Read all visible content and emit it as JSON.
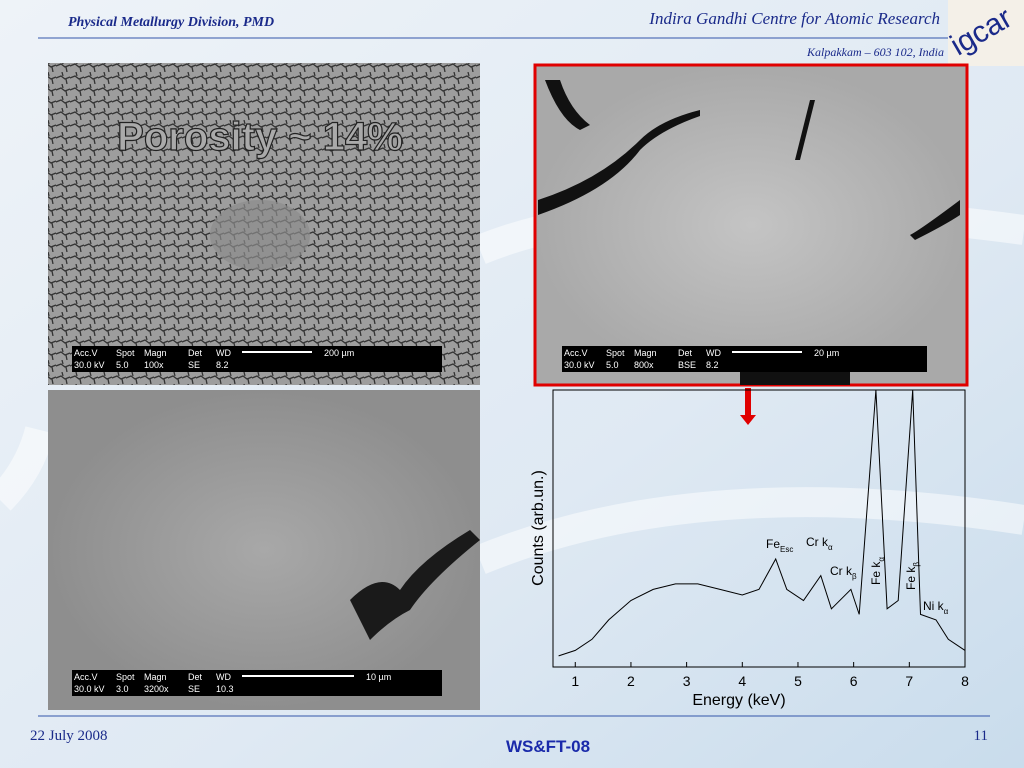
{
  "header": {
    "division": "Physical Metallurgy Division, PMD",
    "institute": "Indira Gandhi Centre for Atomic Research",
    "address": "Kalpakkam – 603 102, India",
    "logo": "igcar"
  },
  "images": [
    {
      "overlay": "Porosity ~ 14%",
      "info_head": [
        "Acc.V",
        "Spot",
        "Magn",
        "Det",
        "WD"
      ],
      "info_vals": [
        "30.0 kV",
        "5.0",
        "100x",
        "SE",
        "8.2"
      ],
      "scale": "200 µm"
    },
    {
      "info_head": [
        "Acc.V",
        "Spot",
        "Magn",
        "Det",
        "WD"
      ],
      "info_vals": [
        "30.0 kV",
        "5.0",
        "800x",
        "BSE",
        "8.2"
      ],
      "scale": "20 µm"
    },
    {
      "info_head": [
        "Acc.V",
        "Spot",
        "Magn",
        "Det",
        "WD"
      ],
      "info_vals": [
        "30.0 kV",
        "3.0",
        "3200x",
        "SE",
        "10.3"
      ],
      "scale": "10 µm"
    }
  ],
  "chart_data": {
    "type": "line",
    "x_label": "Energy (keV)",
    "y_label": "Counts (arb.un.)",
    "x": [
      0.7,
      1.0,
      1.3,
      1.6,
      2.0,
      2.4,
      2.8,
      3.2,
      3.6,
      4.0,
      4.3,
      4.6,
      4.8,
      5.1,
      5.41,
      5.6,
      5.95,
      6.1,
      6.4,
      6.6,
      6.8,
      7.06,
      7.2,
      7.48,
      7.7,
      8.0
    ],
    "series": [
      {
        "color": "#000000",
        "values": [
          4,
          6,
          10,
          17,
          24,
          28,
          30,
          30,
          28,
          26,
          28,
          39,
          28,
          24,
          33,
          21,
          28,
          19,
          100,
          21,
          24,
          100,
          19,
          17,
          10,
          6
        ]
      }
    ],
    "xlim": [
      0.6,
      8
    ],
    "xticks": [
      1,
      2,
      3,
      4,
      5,
      6,
      7,
      8
    ],
    "ylim": [
      0,
      100
    ],
    "peaks": [
      {
        "text": "Fe",
        "sub": "Esc"
      },
      {
        "text": "Cr k",
        "sub": "α"
      },
      {
        "text": "Cr k",
        "sub": "β"
      },
      {
        "text": "Fe k",
        "sub": "α"
      },
      {
        "text": "Fe k",
        "sub": "β"
      },
      {
        "text": "Ni k",
        "sub": "α"
      }
    ]
  },
  "footer": {
    "date": "22 July 2008",
    "event": "WS&FT-08",
    "page": "11"
  }
}
